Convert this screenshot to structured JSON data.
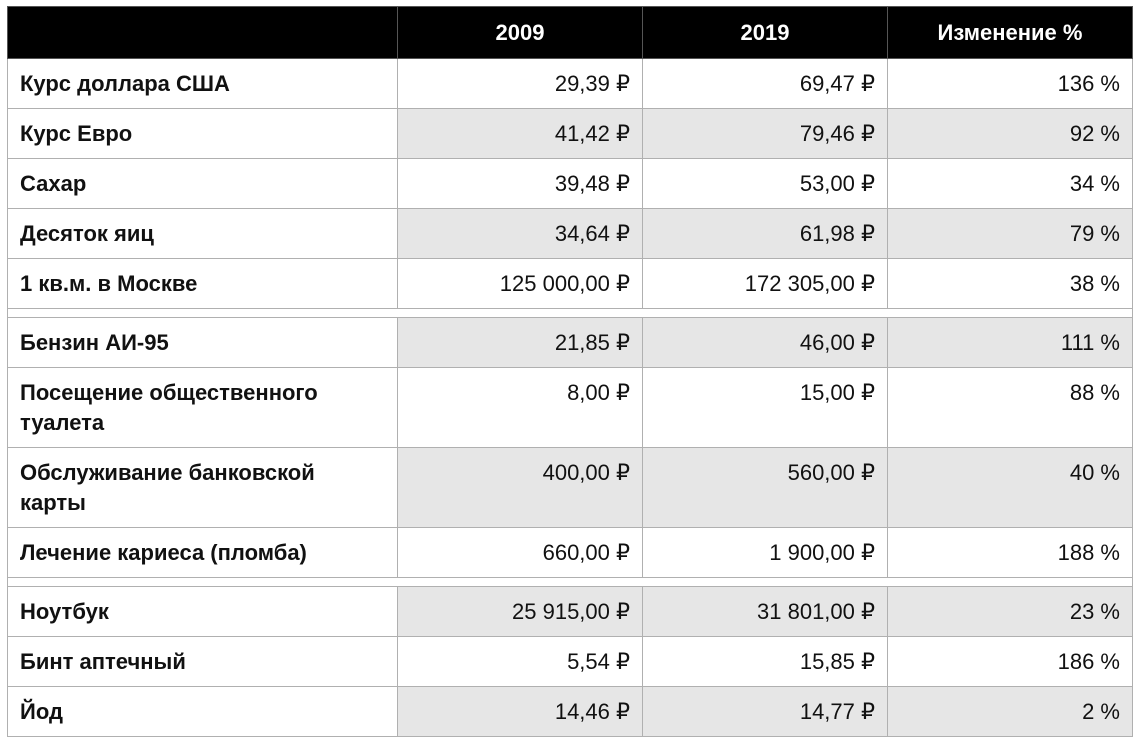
{
  "table": {
    "columns": [
      "",
      "2009",
      "2019",
      "Изменение %"
    ],
    "groups": [
      [
        {
          "label": "Курс доллара США",
          "v2009": "29,39 ₽",
          "v2019": "69,47 ₽",
          "change": "136 %"
        },
        {
          "label": "Курс Евро",
          "v2009": "41,42 ₽",
          "v2019": "79,46 ₽",
          "change": "92 %"
        },
        {
          "label": "Сахар",
          "v2009": "39,48 ₽",
          "v2019": "53,00 ₽",
          "change": "34 %"
        },
        {
          "label": "Десяток яиц",
          "v2009": "34,64 ₽",
          "v2019": "61,98 ₽",
          "change": "79 %"
        },
        {
          "label": "1 кв.м. в Москве",
          "v2009": "125 000,00 ₽",
          "v2019": "172 305,00 ₽",
          "change": "38 %"
        }
      ],
      [
        {
          "label": "Бензин АИ-95",
          "v2009": "21,85 ₽",
          "v2019": "46,00 ₽",
          "change": "111 %"
        },
        {
          "label": "Посещение общественного туалета",
          "v2009": "8,00 ₽",
          "v2019": "15,00 ₽",
          "change": "88 %"
        },
        {
          "label": "Обслуживание банковской карты",
          "v2009": "400,00 ₽",
          "v2019": "560,00 ₽",
          "change": "40 %"
        },
        {
          "label": "Лечение кариеса (пломба)",
          "v2009": "660,00 ₽",
          "v2019": "1 900,00 ₽",
          "change": "188 %"
        }
      ],
      [
        {
          "label": "Ноутбук",
          "v2009": "25 915,00 ₽",
          "v2019": "31 801,00 ₽",
          "change": "23 %"
        },
        {
          "label": "Бинт аптечный",
          "v2009": "5,54 ₽",
          "v2019": "15,85 ₽",
          "change": "186 %"
        },
        {
          "label": "Йод",
          "v2009": "14,46 ₽",
          "v2019": "14,77 ₽",
          "change": "2 %"
        }
      ]
    ]
  }
}
